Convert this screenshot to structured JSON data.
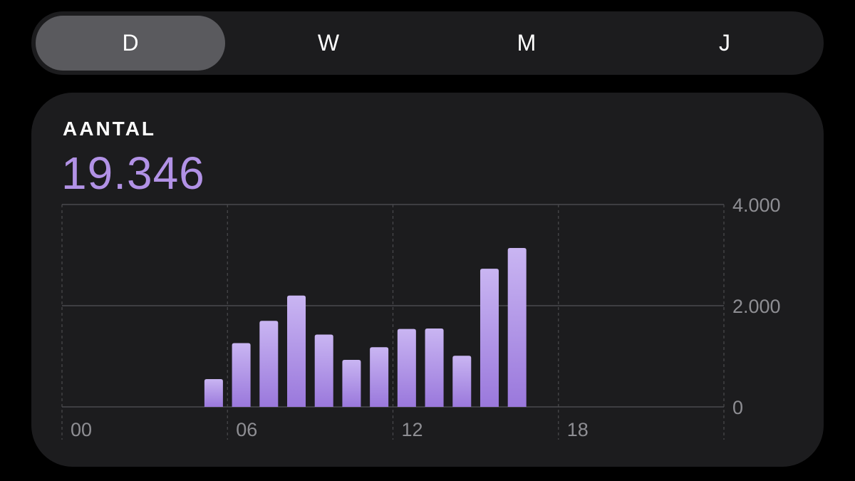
{
  "segments": [
    {
      "label": "D",
      "active": true
    },
    {
      "label": "W",
      "active": false
    },
    {
      "label": "M",
      "active": false
    },
    {
      "label": "J",
      "active": false
    }
  ],
  "metric": {
    "label": "AANTAL",
    "value": "19.346"
  },
  "colors": {
    "accent": "#b292e6",
    "bar_top": "#c9b5f2",
    "bar_bottom": "#9a78dc",
    "grid": "#4a4a4e",
    "tick": "#8e8e93"
  },
  "chart_data": {
    "type": "bar",
    "x_unit": "hour",
    "xlim": [
      0,
      24
    ],
    "ylim": [
      0,
      4000
    ],
    "y_ticks": [
      {
        "value": 4000,
        "label": "4.000"
      },
      {
        "value": 2000,
        "label": "2.000"
      },
      {
        "value": 0,
        "label": "0"
      }
    ],
    "x_ticks": [
      {
        "value": 0,
        "label": "00"
      },
      {
        "value": 6,
        "label": "06"
      },
      {
        "value": 12,
        "label": "12"
      },
      {
        "value": 18,
        "label": "18"
      }
    ],
    "categories": [
      "05",
      "06",
      "07",
      "08",
      "09",
      "10",
      "11",
      "12",
      "13",
      "14",
      "15",
      "16"
    ],
    "hours": [
      5,
      6,
      7,
      8,
      9,
      10,
      11,
      12,
      13,
      14,
      15,
      16
    ],
    "values": [
      550,
      1260,
      1700,
      2200,
      1430,
      930,
      1180,
      1540,
      1550,
      1010,
      2730,
      3140
    ],
    "grid": true
  }
}
